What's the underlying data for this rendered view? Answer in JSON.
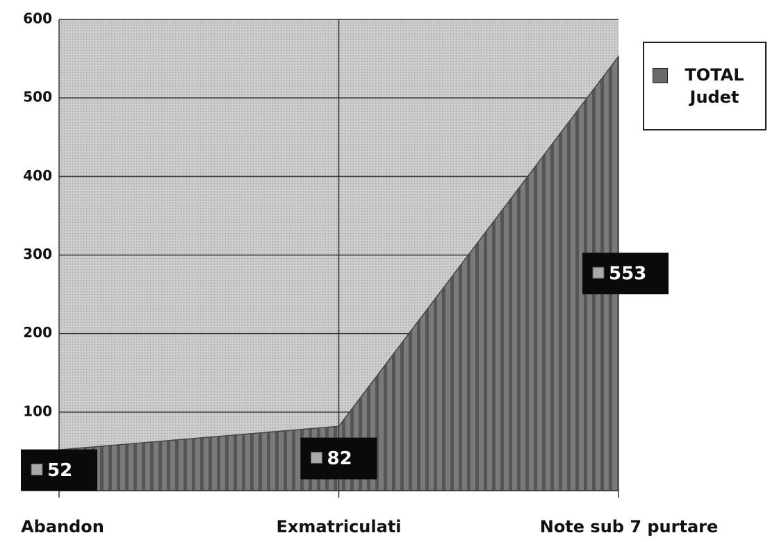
{
  "chart_data": {
    "type": "area",
    "categories": [
      "Abandon",
      "Exmatriculati",
      "Note sub 7 purtare"
    ],
    "series": [
      {
        "name": "TOTAL Judet",
        "color": "#6a6a6a",
        "values": [
          52,
          82,
          553
        ]
      }
    ],
    "ylim": [
      0,
      600
    ],
    "yticks": [
      100,
      200,
      300,
      400,
      500,
      600
    ],
    "grid": true,
    "legend": "right"
  }
}
